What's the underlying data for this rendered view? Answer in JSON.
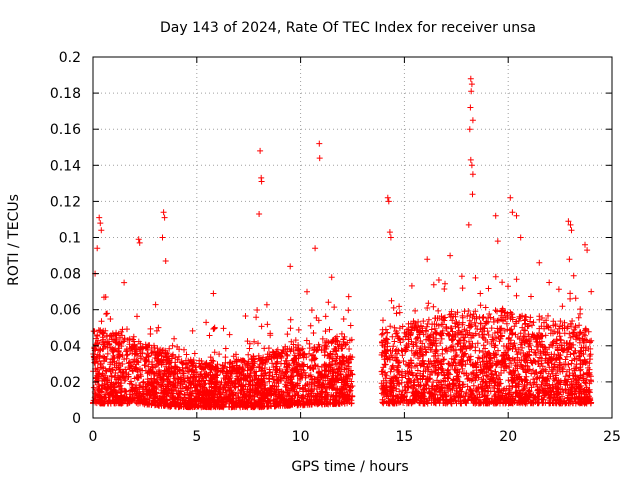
{
  "chart_data": {
    "type": "scatter",
    "title": "Day 143 of 2024, Rate Of TEC Index for receiver unsa",
    "xlabel": "GPS time / hours",
    "ylabel": "ROTI / TECUs",
    "xlim": [
      0,
      25
    ],
    "ylim": [
      0,
      0.2
    ],
    "xticks": [
      0,
      5,
      10,
      15,
      20,
      25
    ],
    "xtick_labels": [
      "0",
      "5",
      "10",
      "15",
      "20",
      "25"
    ],
    "yticks": [
      0,
      0.02,
      0.04,
      0.06,
      0.08,
      0.1,
      0.12,
      0.14,
      0.16,
      0.18,
      0.2
    ],
    "ytick_labels": [
      "0",
      "0.02",
      "0.04",
      "0.06",
      "0.08",
      "0.1",
      "0.12",
      "0.14",
      "0.16",
      "0.18",
      "0.2"
    ],
    "grid": true,
    "marker": "+",
    "color": "#ff0000",
    "data_gaps_hours": [
      [
        12.5,
        13.9
      ]
    ],
    "series": [
      {
        "name": "ROTI",
        "density_profile": {
          "x": [
            0,
            2,
            4,
            6,
            8,
            10,
            12.5,
            13.9,
            16,
            18,
            20,
            22,
            24
          ],
          "typical_max": [
            0.05,
            0.045,
            0.035,
            0.03,
            0.035,
            0.04,
            0.045,
            0.05,
            0.055,
            0.06,
            0.06,
            0.055,
            0.05
          ],
          "typical_min": [
            0.008,
            0.008,
            0.006,
            0.006,
            0.006,
            0.007,
            0.008,
            0.008,
            0.008,
            0.008,
            0.008,
            0.008,
            0.008
          ]
        },
        "notable_points": [
          {
            "x": 0.3,
            "y": 0.111
          },
          {
            "x": 0.35,
            "y": 0.108
          },
          {
            "x": 0.4,
            "y": 0.104
          },
          {
            "x": 0.2,
            "y": 0.094
          },
          {
            "x": 0.1,
            "y": 0.08
          },
          {
            "x": 1.5,
            "y": 0.075
          },
          {
            "x": 2.2,
            "y": 0.099
          },
          {
            "x": 2.25,
            "y": 0.097
          },
          {
            "x": 3.4,
            "y": 0.114
          },
          {
            "x": 3.45,
            "y": 0.111
          },
          {
            "x": 3.35,
            "y": 0.1
          },
          {
            "x": 3.5,
            "y": 0.087
          },
          {
            "x": 5.8,
            "y": 0.069
          },
          {
            "x": 8.05,
            "y": 0.148
          },
          {
            "x": 8.1,
            "y": 0.133
          },
          {
            "x": 8.12,
            "y": 0.131
          },
          {
            "x": 8.0,
            "y": 0.113
          },
          {
            "x": 9.5,
            "y": 0.084
          },
          {
            "x": 10.9,
            "y": 0.152
          },
          {
            "x": 10.92,
            "y": 0.144
          },
          {
            "x": 10.7,
            "y": 0.094
          },
          {
            "x": 11.5,
            "y": 0.078
          },
          {
            "x": 14.2,
            "y": 0.122
          },
          {
            "x": 14.25,
            "y": 0.12
          },
          {
            "x": 14.3,
            "y": 0.103
          },
          {
            "x": 14.35,
            "y": 0.1
          },
          {
            "x": 16.1,
            "y": 0.088
          },
          {
            "x": 17.2,
            "y": 0.09
          },
          {
            "x": 18.2,
            "y": 0.188
          },
          {
            "x": 18.25,
            "y": 0.185
          },
          {
            "x": 18.22,
            "y": 0.181
          },
          {
            "x": 18.18,
            "y": 0.172
          },
          {
            "x": 18.3,
            "y": 0.165
          },
          {
            "x": 18.15,
            "y": 0.16
          },
          {
            "x": 18.2,
            "y": 0.143
          },
          {
            "x": 18.25,
            "y": 0.14
          },
          {
            "x": 18.3,
            "y": 0.135
          },
          {
            "x": 18.28,
            "y": 0.124
          },
          {
            "x": 18.1,
            "y": 0.107
          },
          {
            "x": 19.4,
            "y": 0.112
          },
          {
            "x": 19.5,
            "y": 0.098
          },
          {
            "x": 20.1,
            "y": 0.122
          },
          {
            "x": 20.2,
            "y": 0.114
          },
          {
            "x": 20.4,
            "y": 0.112
          },
          {
            "x": 20.6,
            "y": 0.1
          },
          {
            "x": 21.5,
            "y": 0.086
          },
          {
            "x": 22.9,
            "y": 0.109
          },
          {
            "x": 23.0,
            "y": 0.107
          },
          {
            "x": 23.05,
            "y": 0.104
          },
          {
            "x": 22.95,
            "y": 0.088
          },
          {
            "x": 23.7,
            "y": 0.096
          },
          {
            "x": 23.8,
            "y": 0.093
          },
          {
            "x": 24.0,
            "y": 0.07
          }
        ]
      }
    ]
  }
}
